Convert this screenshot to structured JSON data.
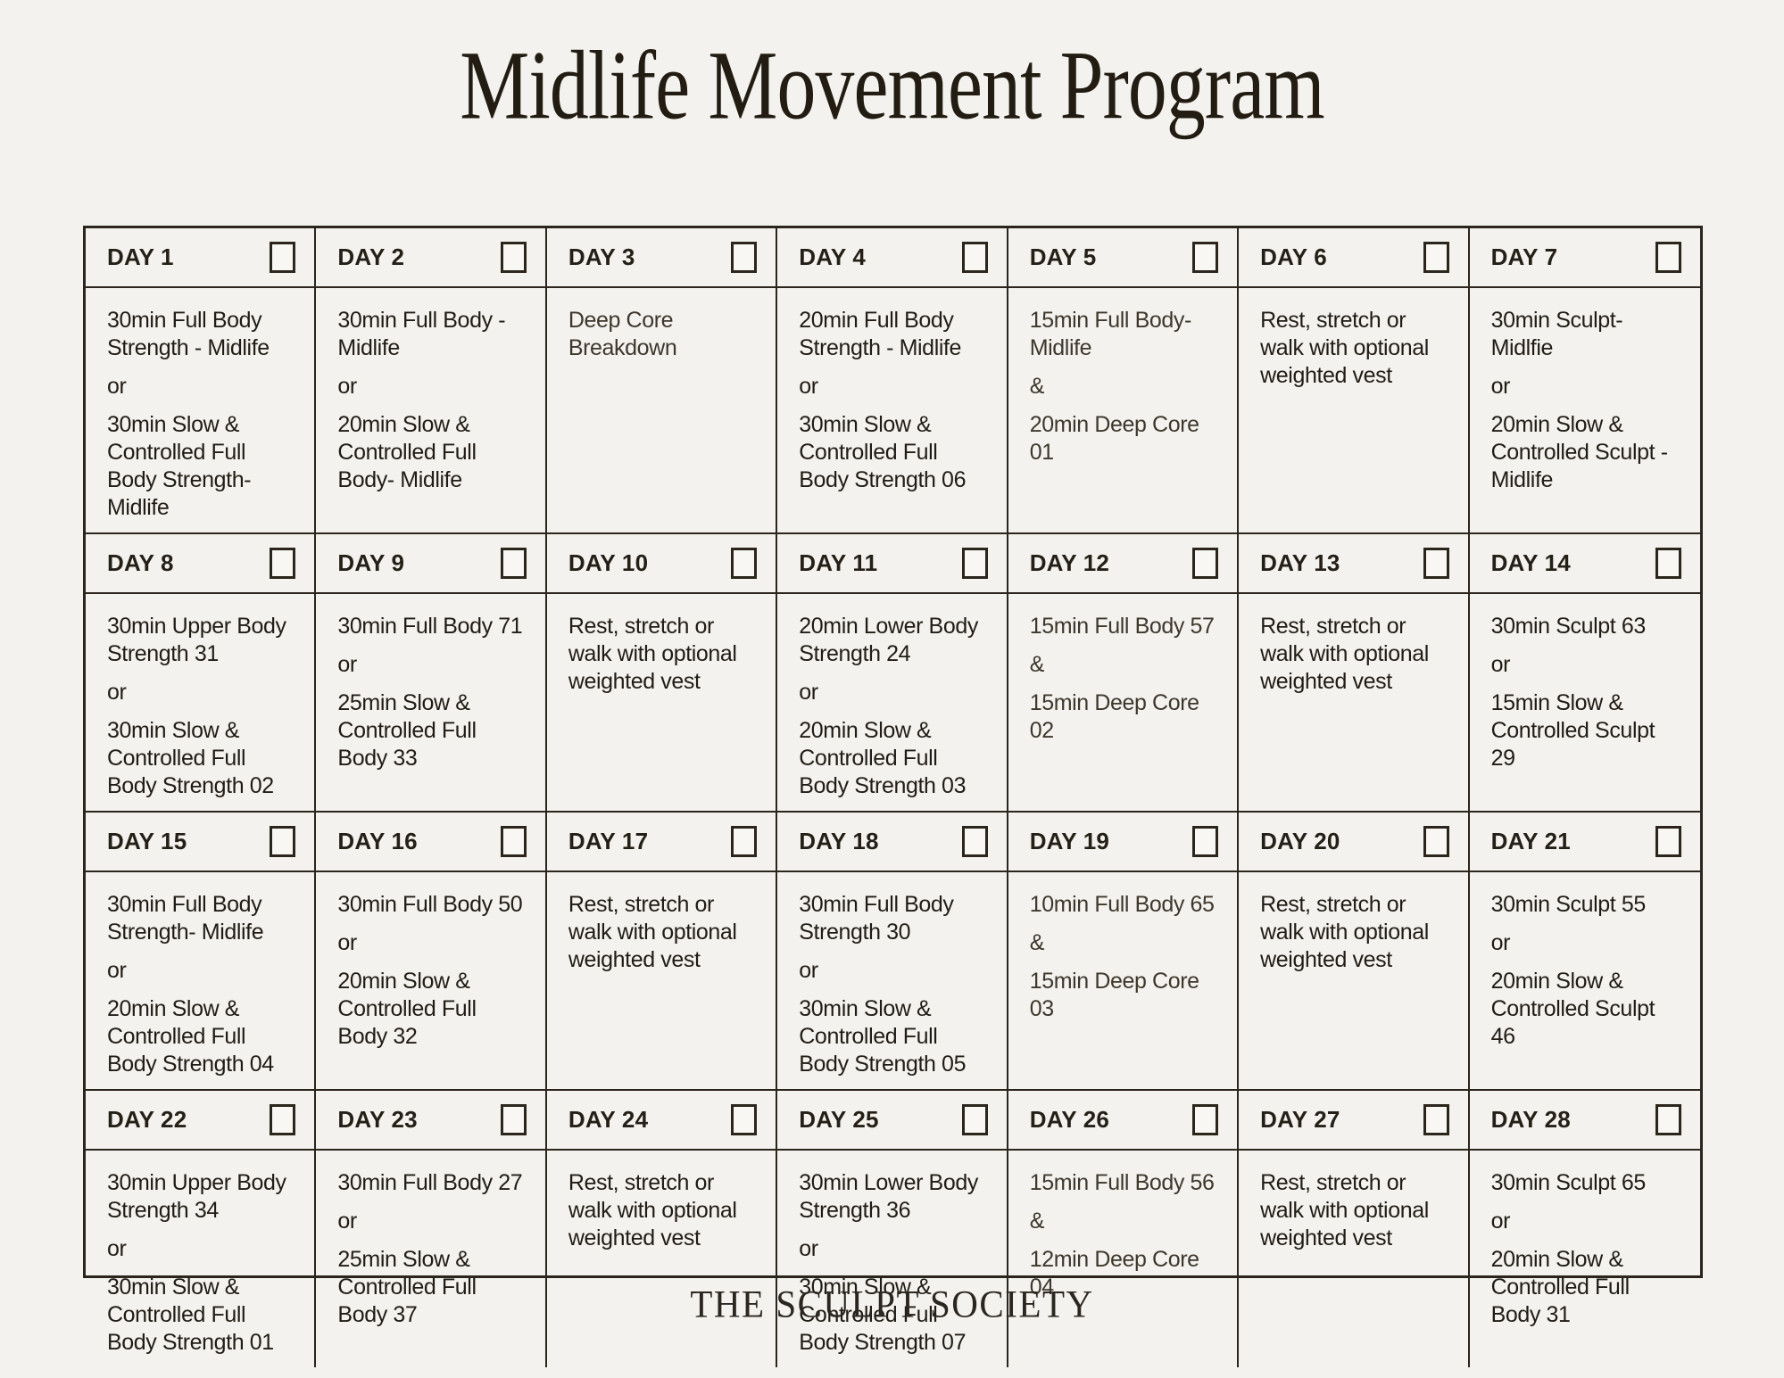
{
  "title": "Midlife Movement Program",
  "footer": "THE SCULPT SOCIETY",
  "colors": {
    "background": "#f3f2ee",
    "grid_line": "#2b251c",
    "text": "#211c15",
    "muted_text": "#3e372c",
    "header_text": "#252017",
    "title_text": "#221c12",
    "footer_text": "#2c2620"
  },
  "days": [
    {
      "label": "DAY 1",
      "checked": false,
      "muted": false,
      "paragraphs": [
        "30min Full Body Strength - Midlife",
        "or",
        "30min Slow & Controlled  Full Body Strength- Midlife"
      ]
    },
    {
      "label": "DAY 2",
      "checked": false,
      "muted": false,
      "paragraphs": [
        "30min Full Body - Midlife",
        "or",
        "20min Slow & Controlled Full Body- Midlife"
      ]
    },
    {
      "label": "DAY 3",
      "checked": false,
      "muted": true,
      "paragraphs": [
        "Deep Core Breakdown"
      ]
    },
    {
      "label": "DAY 4",
      "checked": false,
      "muted": false,
      "paragraphs": [
        "20min Full Body Strength - Midlife",
        "or",
        "30min Slow & Controlled Full Body Strength 06"
      ]
    },
    {
      "label": "DAY 5",
      "checked": false,
      "muted": true,
      "paragraphs": [
        "15min Full Body- Midlife",
        "&",
        "20min  Deep Core  01"
      ]
    },
    {
      "label": "DAY 6",
      "checked": false,
      "muted": false,
      "paragraphs": [
        "Rest, stretch or walk with optional weighted vest"
      ]
    },
    {
      "label": "DAY 7",
      "checked": false,
      "muted": false,
      "paragraphs": [
        "30min Sculpt-Midlfie",
        "or",
        "20min Slow & Controlled Sculpt - Midlife"
      ]
    },
    {
      "label": "DAY 8",
      "checked": false,
      "muted": false,
      "paragraphs": [
        "30min Upper Body Strength 31",
        "or",
        "30min Slow & Controlled  Full Body Strength 02"
      ]
    },
    {
      "label": "DAY 9",
      "checked": false,
      "muted": false,
      "paragraphs": [
        "30min Full Body 71",
        "or",
        "25min Slow & Controlled Full Body 33"
      ]
    },
    {
      "label": "DAY 10",
      "checked": false,
      "muted": false,
      "paragraphs": [
        "Rest, stretch or walk with optional weighted vest"
      ]
    },
    {
      "label": "DAY 11",
      "checked": false,
      "muted": false,
      "paragraphs": [
        "20min Lower Body Strength 24",
        "or",
        "20min Slow & Controlled Full Body Strength 03"
      ]
    },
    {
      "label": "DAY 12",
      "checked": false,
      "muted": true,
      "paragraphs": [
        "15min Full Body 57",
        "&",
        "15min  Deep Core  02"
      ]
    },
    {
      "label": "DAY 13",
      "checked": false,
      "muted": false,
      "paragraphs": [
        "Rest, stretch or walk with optional weighted vest"
      ]
    },
    {
      "label": "DAY 14",
      "checked": false,
      "muted": false,
      "paragraphs": [
        "30min Sculpt 63",
        "or",
        "15min Slow & Controlled Sculpt 29"
      ]
    },
    {
      "label": "DAY 15",
      "checked": false,
      "muted": false,
      "paragraphs": [
        "30min Full Body Strength- Midlife",
        "or",
        "20min Slow & Controlled Full Body Strength 04"
      ]
    },
    {
      "label": "DAY 16",
      "checked": false,
      "muted": false,
      "paragraphs": [
        "30min Full Body 50",
        "or",
        "20min Slow & Controlled Full Body 32"
      ]
    },
    {
      "label": "DAY 17",
      "checked": false,
      "muted": false,
      "paragraphs": [
        "Rest, stretch or walk with optional weighted vest"
      ]
    },
    {
      "label": "DAY 18",
      "checked": false,
      "muted": false,
      "paragraphs": [
        "30min Full Body Strength 30",
        "or",
        "30min Slow & Controlled Full Body Strength 05"
      ]
    },
    {
      "label": "DAY 19",
      "checked": false,
      "muted": true,
      "paragraphs": [
        "10min Full Body 65",
        "&",
        "15min Deep Core  03"
      ]
    },
    {
      "label": "DAY 20",
      "checked": false,
      "muted": false,
      "paragraphs": [
        "Rest, stretch or walk with optional weighted vest"
      ]
    },
    {
      "label": "DAY 21",
      "checked": false,
      "muted": false,
      "paragraphs": [
        "30min Sculpt  55",
        "or",
        "20min  Slow & Controlled Sculpt 46"
      ]
    },
    {
      "label": "DAY 22",
      "checked": false,
      "muted": false,
      "paragraphs": [
        "30min Upper Body Strength 34",
        "or",
        "30min Slow & Controlled Full Body Strength 01"
      ]
    },
    {
      "label": "DAY 23",
      "checked": false,
      "muted": false,
      "paragraphs": [
        "30min Full Body 27",
        "or",
        "25min  Slow & Controlled Full Body 37"
      ]
    },
    {
      "label": "DAY 24",
      "checked": false,
      "muted": false,
      "paragraphs": [
        "Rest, stretch or walk with optional weighted vest"
      ]
    },
    {
      "label": "DAY 25",
      "checked": false,
      "muted": false,
      "paragraphs": [
        "30min Lower Body Strength 36",
        "or",
        "30min Slow & Controlled Full Body Strength 07"
      ]
    },
    {
      "label": "DAY 26",
      "checked": false,
      "muted": true,
      "paragraphs": [
        "15min Full Body 56",
        "&",
        "12min Deep Core  04"
      ]
    },
    {
      "label": "DAY 27",
      "checked": false,
      "muted": false,
      "paragraphs": [
        "Rest, stretch or walk with optional weighted vest"
      ]
    },
    {
      "label": "DAY 28",
      "checked": false,
      "muted": false,
      "paragraphs": [
        "30min Sculpt  65",
        "or",
        "20min  Slow & Controlled Full Body 31"
      ]
    }
  ]
}
